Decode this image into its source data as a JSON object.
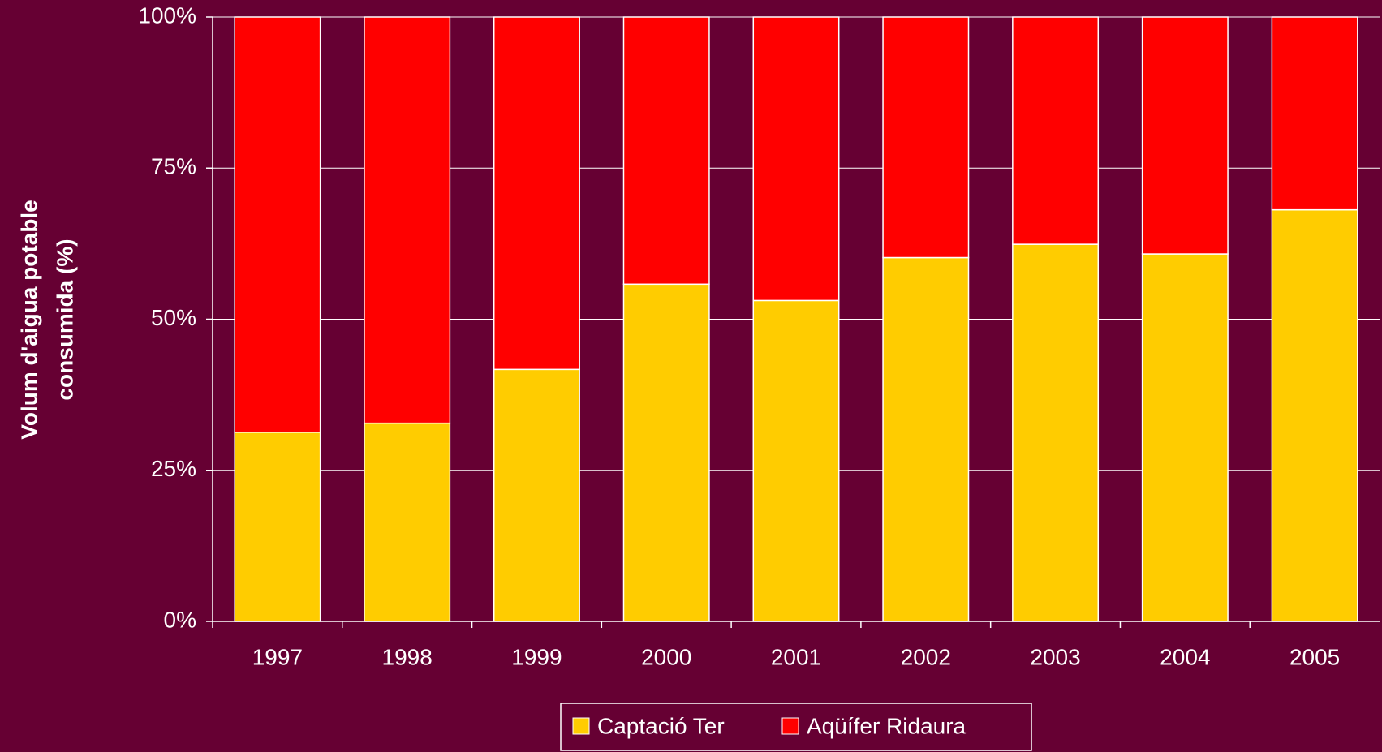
{
  "chart_data": {
    "type": "stacked_bar",
    "y_label": [
      "Volum d'aigua potable",
      "consumida (%)"
    ],
    "categories": [
      "1997",
      "1998",
      "1999",
      "2000",
      "2001",
      "2002",
      "2003",
      "2004",
      "2005"
    ],
    "series": [
      {
        "name": "Captació Ter",
        "color": "#ffcc00",
        "values": [
          31.3,
          32.8,
          41.7,
          55.8,
          53.1,
          60.2,
          62.4,
          60.8,
          68.1
        ]
      },
      {
        "name": "Aqüífer Ridaura",
        "color": "#ff0000",
        "values": [
          68.7,
          67.2,
          58.3,
          44.2,
          46.9,
          39.8,
          37.6,
          39.2,
          31.9
        ]
      }
    ],
    "ylim": [
      0,
      100
    ],
    "yticks": [
      {
        "value": 0,
        "label": "0%"
      },
      {
        "value": 25,
        "label": "25%"
      },
      {
        "value": 50,
        "label": "50%"
      },
      {
        "value": 75,
        "label": "75%"
      },
      {
        "value": 100,
        "label": "100%"
      }
    ],
    "grid": true,
    "legend": "bottom"
  }
}
